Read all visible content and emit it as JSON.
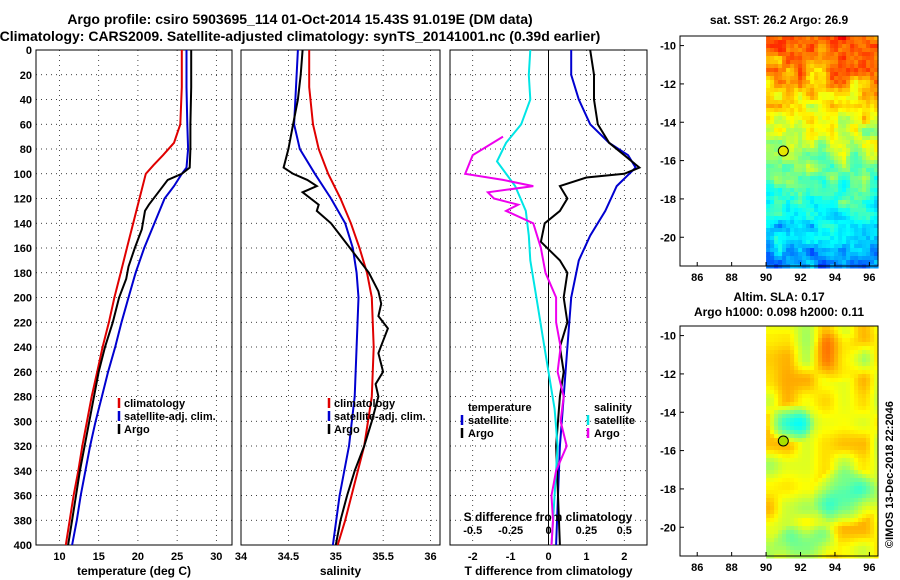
{
  "title": {
    "line1": "Argo profile: csiro 5903695_114 01-Oct-2014 15.43S 91.019E (DM data)",
    "line2": "Climatology: CARS2009. Satellite-adjusted climatology: synTS_20141001.nc (0.39d earlier)"
  },
  "credit": "©IMOS 13-Dec-2018 22:2046",
  "colors": {
    "climatology": "#e00000",
    "satellite": "#0000d0",
    "argo": "#000000",
    "argo_s": "#ee00ee",
    "sat_s": "#00e5e5"
  },
  "chart_data": [
    {
      "type": "line",
      "name": "temperature",
      "xlabel": "temperature (deg C)",
      "ylabel": "",
      "xlim": [
        7,
        32
      ],
      "ylim": [
        0,
        400
      ],
      "xticks": [
        10,
        15,
        20,
        25,
        30
      ],
      "yticks": [
        0,
        20,
        40,
        60,
        80,
        100,
        120,
        140,
        160,
        180,
        200,
        220,
        240,
        260,
        280,
        300,
        320,
        340,
        360,
        380,
        400
      ],
      "legend": [
        "climatology",
        "satellite-adj. clim.",
        "Argo"
      ],
      "series": [
        {
          "name": "climatology",
          "color": "#e00000",
          "points": [
            [
              25.6,
              0
            ],
            [
              25.6,
              30
            ],
            [
              25.4,
              60
            ],
            [
              24.6,
              75
            ],
            [
              23.2,
              85
            ],
            [
              22.0,
              93
            ],
            [
              21.0,
              100
            ],
            [
              20.2,
              120
            ],
            [
              19.4,
              140
            ],
            [
              18.6,
              160
            ],
            [
              17.8,
              180
            ],
            [
              17.0,
              200
            ],
            [
              16.3,
              220
            ],
            [
              15.5,
              240
            ],
            [
              14.8,
              260
            ],
            [
              14.1,
              280
            ],
            [
              13.5,
              300
            ],
            [
              12.9,
              320
            ],
            [
              12.4,
              340
            ],
            [
              11.8,
              360
            ],
            [
              11.3,
              380
            ],
            [
              10.8,
              400
            ]
          ]
        },
        {
          "name": "satellite-adj. clim.",
          "color": "#0000d0",
          "points": [
            [
              26.2,
              0
            ],
            [
              26.2,
              30
            ],
            [
              26.3,
              60
            ],
            [
              26.4,
              80
            ],
            [
              26.2,
              95
            ],
            [
              25.6,
              100
            ],
            [
              24.6,
              110
            ],
            [
              23.4,
              120
            ],
            [
              22.1,
              140
            ],
            [
              20.8,
              160
            ],
            [
              19.7,
              180
            ],
            [
              18.8,
              200
            ],
            [
              17.9,
              220
            ],
            [
              17.1,
              240
            ],
            [
              16.2,
              260
            ],
            [
              15.4,
              280
            ],
            [
              14.6,
              300
            ],
            [
              13.9,
              320
            ],
            [
              13.3,
              340
            ],
            [
              12.7,
              360
            ],
            [
              12.2,
              380
            ],
            [
              11.6,
              400
            ]
          ]
        },
        {
          "name": "Argo",
          "color": "#000000",
          "points": [
            [
              26.8,
              0
            ],
            [
              26.8,
              30
            ],
            [
              26.7,
              60
            ],
            [
              26.7,
              80
            ],
            [
              26.6,
              95
            ],
            [
              25.6,
              100
            ],
            [
              23.8,
              105
            ],
            [
              22.6,
              115
            ],
            [
              21.4,
              125
            ],
            [
              20.9,
              130
            ],
            [
              20.5,
              145
            ],
            [
              19.6,
              160
            ],
            [
              18.8,
              175
            ],
            [
              18.5,
              185
            ],
            [
              17.6,
              200
            ],
            [
              16.8,
              220
            ],
            [
              15.8,
              240
            ],
            [
              15.0,
              260
            ],
            [
              14.4,
              280
            ],
            [
              13.8,
              300
            ],
            [
              13.2,
              320
            ],
            [
              12.6,
              340
            ],
            [
              12.1,
              360
            ],
            [
              11.6,
              380
            ],
            [
              11.1,
              400
            ]
          ]
        }
      ]
    },
    {
      "type": "line",
      "name": "salinity",
      "xlabel": "salinity",
      "ylabel": "",
      "xlim": [
        34,
        36.1
      ],
      "ylim": [
        0,
        400
      ],
      "xticks": [
        34,
        34.5,
        35,
        35.5,
        36
      ],
      "yticks": [
        0,
        20,
        40,
        60,
        80,
        100,
        120,
        140,
        160,
        180,
        200,
        220,
        240,
        260,
        280,
        300,
        320,
        340,
        360,
        380,
        400
      ],
      "legend": [
        "climatology",
        "satellite-adj. clim.",
        "Argo"
      ],
      "series": [
        {
          "name": "climatology",
          "color": "#e00000",
          "points": [
            [
              34.72,
              0
            ],
            [
              34.72,
              30
            ],
            [
              34.76,
              60
            ],
            [
              34.82,
              80
            ],
            [
              34.92,
              100
            ],
            [
              35.05,
              120
            ],
            [
              35.16,
              140
            ],
            [
              35.25,
              160
            ],
            [
              35.33,
              180
            ],
            [
              35.38,
              200
            ],
            [
              35.4,
              240
            ],
            [
              35.38,
              280
            ],
            [
              35.3,
              320
            ],
            [
              35.2,
              350
            ],
            [
              35.1,
              380
            ],
            [
              35.02,
              400
            ]
          ]
        },
        {
          "name": "satellite-adj. clim.",
          "color": "#0000d0",
          "points": [
            [
              34.6,
              0
            ],
            [
              34.58,
              30
            ],
            [
              34.56,
              60
            ],
            [
              34.62,
              80
            ],
            [
              34.78,
              100
            ],
            [
              34.95,
              120
            ],
            [
              35.1,
              140
            ],
            [
              35.18,
              160
            ],
            [
              35.22,
              180
            ],
            [
              35.24,
              200
            ],
            [
              35.22,
              240
            ],
            [
              35.2,
              280
            ],
            [
              35.14,
              320
            ],
            [
              35.04,
              360
            ],
            [
              34.97,
              400
            ]
          ]
        },
        {
          "name": "Argo",
          "color": "#000000",
          "points": [
            [
              34.65,
              0
            ],
            [
              34.63,
              20
            ],
            [
              34.6,
              40
            ],
            [
              34.55,
              60
            ],
            [
              34.5,
              80
            ],
            [
              34.45,
              95
            ],
            [
              34.55,
              100
            ],
            [
              34.7,
              105
            ],
            [
              34.8,
              110
            ],
            [
              34.65,
              115
            ],
            [
              34.82,
              125
            ],
            [
              34.8,
              130
            ],
            [
              34.95,
              140
            ],
            [
              35.05,
              150
            ],
            [
              35.2,
              165
            ],
            [
              35.35,
              180
            ],
            [
              35.45,
              195
            ],
            [
              35.48,
              205
            ],
            [
              35.45,
              215
            ],
            [
              35.55,
              225
            ],
            [
              35.5,
              235
            ],
            [
              35.45,
              245
            ],
            [
              35.5,
              260
            ],
            [
              35.42,
              270
            ],
            [
              35.45,
              280
            ],
            [
              35.38,
              300
            ],
            [
              35.3,
              320
            ],
            [
              35.2,
              340
            ],
            [
              35.12,
              360
            ],
            [
              35.05,
              380
            ],
            [
              35.0,
              400
            ]
          ]
        }
      ]
    },
    {
      "type": "line",
      "name": "difference",
      "xlabel": "T difference from climatology",
      "x2label": "S difference from climatology",
      "xlim": [
        -2.6,
        2.6
      ],
      "ylim": [
        0,
        400
      ],
      "xticks": [
        -2,
        -1,
        0,
        1,
        2
      ],
      "x2ticks": [
        "-0.5",
        "-0.25",
        "0",
        "0.25",
        "0.5"
      ],
      "x2lim": [
        -0.65,
        0.65
      ],
      "yticks": [
        0,
        20,
        40,
        60,
        80,
        100,
        120,
        140,
        160,
        180,
        200,
        220,
        240,
        260,
        280,
        300,
        320,
        340,
        360,
        380,
        400
      ],
      "legend_left_title": "temperature",
      "legend_left": [
        "satellite",
        "Argo"
      ],
      "legend_right_title": "salinity",
      "legend_right": [
        "satellite",
        "Argo"
      ],
      "series": [
        {
          "name": "T satellite",
          "color": "#0000d0",
          "points": [
            [
              0.6,
              0
            ],
            [
              0.6,
              20
            ],
            [
              0.8,
              40
            ],
            [
              1.1,
              60
            ],
            [
              1.6,
              75
            ],
            [
              2.1,
              85
            ],
            [
              2.3,
              95
            ],
            [
              1.8,
              110
            ],
            [
              1.5,
              130
            ],
            [
              1.1,
              150
            ],
            [
              0.8,
              170
            ],
            [
              0.6,
              200
            ],
            [
              0.5,
              240
            ],
            [
              0.4,
              280
            ],
            [
              0.3,
              320
            ],
            [
              0.25,
              360
            ],
            [
              0.2,
              400
            ]
          ]
        },
        {
          "name": "T Argo",
          "color": "#000000",
          "points": [
            [
              1.1,
              0
            ],
            [
              1.2,
              20
            ],
            [
              1.2,
              40
            ],
            [
              1.3,
              60
            ],
            [
              1.6,
              75
            ],
            [
              2.0,
              85
            ],
            [
              2.4,
              95
            ],
            [
              2.0,
              100
            ],
            [
              1.0,
              103
            ],
            [
              0.3,
              110
            ],
            [
              0.5,
              120
            ],
            [
              0.3,
              130
            ],
            [
              -0.1,
              140
            ],
            [
              -0.2,
              155
            ],
            [
              0.3,
              170
            ],
            [
              0.5,
              180
            ],
            [
              0.4,
              200
            ],
            [
              0.5,
              220
            ],
            [
              0.3,
              240
            ],
            [
              0.4,
              260
            ],
            [
              0.3,
              280
            ],
            [
              0.2,
              320
            ],
            [
              0.25,
              360
            ],
            [
              0.3,
              400
            ]
          ]
        },
        {
          "name": "S satellite",
          "color": "#00e5e5",
          "points": [
            [
              -0.12,
              0
            ],
            [
              -0.13,
              20
            ],
            [
              -0.12,
              40
            ],
            [
              -0.18,
              60
            ],
            [
              -0.28,
              75
            ],
            [
              -0.34,
              90
            ],
            [
              -0.22,
              110
            ],
            [
              -0.15,
              130
            ],
            [
              -0.13,
              150
            ],
            [
              -0.12,
              170
            ],
            [
              -0.08,
              200
            ],
            [
              -0.04,
              230
            ],
            [
              0.0,
              260
            ],
            [
              0.04,
              290
            ],
            [
              0.06,
              320
            ],
            [
              0.04,
              360
            ],
            [
              0.02,
              400
            ]
          ]
        },
        {
          "name": "S Argo",
          "color": "#ee00ee",
          "points": [
            [
              -0.3,
              70
            ],
            [
              -0.5,
              85
            ],
            [
              -0.55,
              100
            ],
            [
              -0.3,
              105
            ],
            [
              -0.1,
              110
            ],
            [
              -0.4,
              115
            ],
            [
              -0.36,
              120
            ],
            [
              -0.2,
              125
            ],
            [
              -0.28,
              130
            ],
            [
              -0.1,
              140
            ],
            [
              -0.05,
              160
            ],
            [
              -0.02,
              180
            ],
            [
              0.05,
              200
            ],
            [
              0.05,
              220
            ],
            [
              0.08,
              240
            ],
            [
              0.06,
              260
            ],
            [
              0.1,
              280
            ],
            [
              0.08,
              300
            ],
            [
              0.12,
              320
            ],
            [
              0.05,
              340
            ],
            [
              0.02,
              360
            ],
            [
              0.03,
              380
            ],
            [
              0.02,
              400
            ]
          ]
        }
      ]
    },
    {
      "type": "heatmap",
      "name": "sst-map",
      "title": "sat. SST: 26.2 Argo: 26.9",
      "xlim": [
        85,
        96.5
      ],
      "ylim": [
        -21.5,
        -9.5
      ],
      "xticks": [
        86,
        88,
        90,
        92,
        94,
        96
      ],
      "yticks": [
        -10,
        -12,
        -14,
        -16,
        -18,
        -20
      ],
      "marker": [
        91.0,
        -15.5
      ]
    },
    {
      "type": "heatmap",
      "name": "sla-map",
      "title_line1": "Altim. SLA: 0.17",
      "title_line2": "Argo h1000: 0.098 h2000: 0.11",
      "xlim": [
        85,
        96.5
      ],
      "ylim": [
        -21.5,
        -9.5
      ],
      "xticks": [
        86,
        88,
        90,
        92,
        94,
        96
      ],
      "yticks": [
        -10,
        -12,
        -14,
        -16,
        -18,
        -20
      ],
      "marker": [
        91.0,
        -15.5
      ]
    }
  ]
}
